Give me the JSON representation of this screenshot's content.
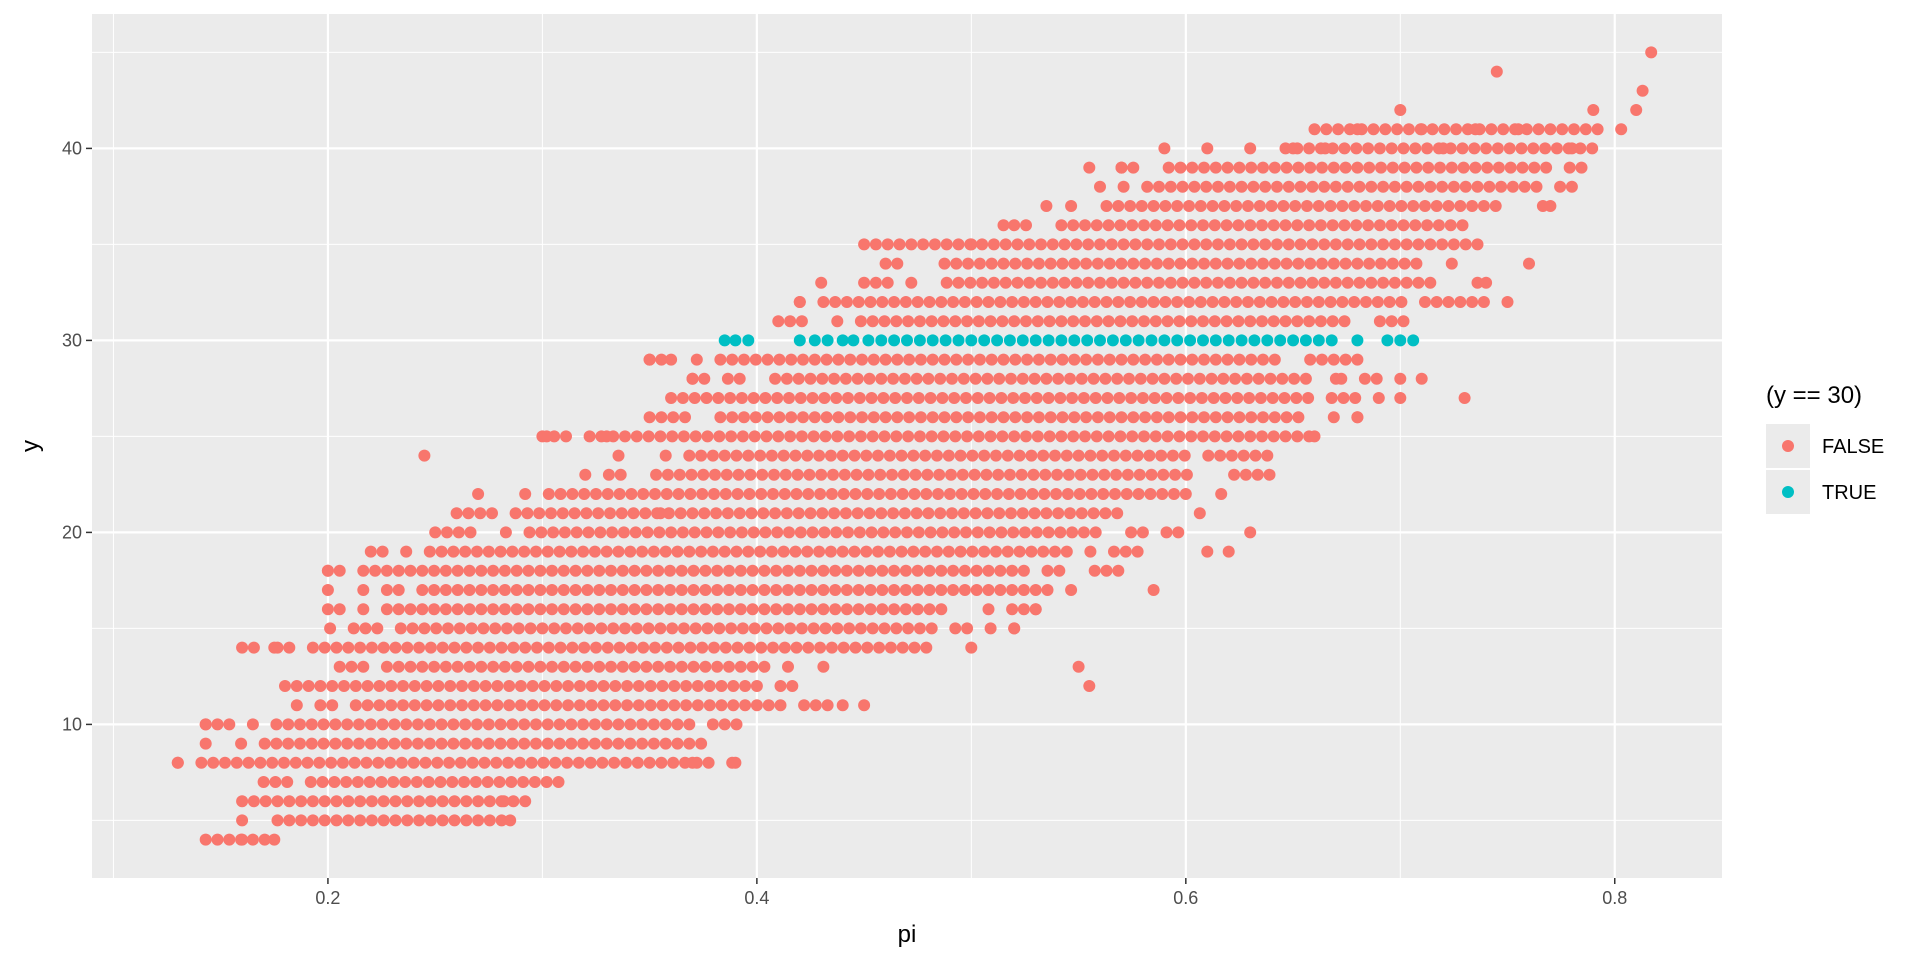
{
  "chart_data": {
    "type": "scatter",
    "xlabel": "pi",
    "ylabel": "y",
    "xlim": [
      0.09,
      0.85
    ],
    "ylim": [
      2,
      47
    ],
    "x_ticks": [
      0.2,
      0.4,
      0.6,
      0.8
    ],
    "x_tick_labels": [
      "0.2",
      "0.4",
      "0.6",
      "0.8"
    ],
    "y_ticks": [
      10,
      20,
      30,
      40
    ],
    "y_tick_labels": [
      "10",
      "20",
      "30",
      "40"
    ],
    "grid": true,
    "legend": {
      "title": "(y == 30)",
      "placement": "right",
      "entries": [
        {
          "label": "FALSE",
          "color": "#F8766D"
        },
        {
          "label": "TRUE",
          "color": "#00BFC4"
        }
      ]
    },
    "colors": {
      "panel": "#EBEBEB",
      "grid": "#FFFFFF",
      "false": "#F8766D",
      "true": "#00BFC4"
    },
    "integer_y_bands": [
      {
        "y": 4,
        "x": [
          0.143,
          0.175
        ]
      },
      {
        "y": 5,
        "x": [
          0.16,
          0.29
        ]
      },
      {
        "y": 6,
        "x": [
          0.16,
          0.3
        ]
      },
      {
        "y": 7,
        "x": [
          0.17,
          0.31
        ]
      },
      {
        "y": 8,
        "x": [
          0.13,
          0.39
        ]
      },
      {
        "y": 9,
        "x": [
          0.143,
          0.39
        ]
      },
      {
        "y": 10,
        "x": [
          0.143,
          0.395
        ]
      },
      {
        "y": 11,
        "x": [
          0.18,
          0.435
        ]
      },
      {
        "y": 12,
        "x": [
          0.18,
          0.42
        ]
      },
      {
        "y": 13,
        "x": [
          0.2,
          0.435
        ]
      },
      {
        "y": 14,
        "x": [
          0.16,
          0.5
        ]
      },
      {
        "y": 15,
        "x": [
          0.19,
          0.52
        ]
      },
      {
        "y": 16,
        "x": [
          0.2,
          0.53
        ]
      },
      {
        "y": 17,
        "x": [
          0.2,
          0.55
        ]
      },
      {
        "y": 18,
        "x": [
          0.2,
          0.57
        ]
      },
      {
        "y": 19,
        "x": [
          0.22,
          0.58
        ]
      },
      {
        "y": 20,
        "x": [
          0.25,
          0.6
        ]
      },
      {
        "y": 21,
        "x": [
          0.26,
          0.61
        ]
      },
      {
        "y": 22,
        "x": [
          0.27,
          0.62
        ]
      },
      {
        "y": 23,
        "x": [
          0.32,
          0.64
        ]
      },
      {
        "y": 24,
        "x": [
          0.33,
          0.64
        ]
      },
      {
        "y": 25,
        "x": [
          0.3,
          0.66
        ]
      },
      {
        "y": 26,
        "x": [
          0.35,
          0.68
        ]
      },
      {
        "y": 27,
        "x": [
          0.36,
          0.7
        ]
      },
      {
        "y": 28,
        "x": [
          0.37,
          0.7
        ]
      },
      {
        "y": 29,
        "x": [
          0.35,
          0.68
        ]
      },
      {
        "y": 31,
        "x": [
          0.41,
          0.71
        ]
      },
      {
        "y": 32,
        "x": [
          0.42,
          0.74
        ]
      },
      {
        "y": 33,
        "x": [
          0.45,
          0.74
        ]
      },
      {
        "y": 34,
        "x": [
          0.46,
          0.745
        ]
      },
      {
        "y": 35,
        "x": [
          0.45,
          0.74
        ]
      },
      {
        "y": 36,
        "x": [
          0.52,
          0.73
        ]
      },
      {
        "y": 37,
        "x": [
          0.53,
          0.77
        ]
      },
      {
        "y": 38,
        "x": [
          0.56,
          0.78
        ]
      },
      {
        "y": 39,
        "x": [
          0.57,
          0.79
        ]
      },
      {
        "y": 40,
        "x": [
          0.63,
          0.79
        ]
      },
      {
        "y": 41,
        "x": [
          0.66,
          0.81
        ]
      }
    ],
    "series": [
      {
        "name": "FALSE",
        "color": "#F8766D",
        "points": [
          [
            0.13,
            8
          ],
          [
            0.143,
            4
          ],
          [
            0.143,
            9
          ],
          [
            0.143,
            10
          ],
          [
            0.16,
            14
          ],
          [
            0.16,
            4
          ],
          [
            0.175,
            4
          ],
          [
            0.175,
            14
          ],
          [
            0.245,
            24
          ],
          [
            0.2,
            18
          ],
          [
            0.282,
            6
          ],
          [
            0.285,
            5
          ],
          [
            0.37,
            8
          ],
          [
            0.39,
            8
          ],
          [
            0.302,
            25
          ],
          [
            0.33,
            25
          ],
          [
            0.35,
            29
          ],
          [
            0.36,
            29
          ],
          [
            0.355,
            21
          ],
          [
            0.37,
            28
          ],
          [
            0.44,
            11
          ],
          [
            0.45,
            11
          ],
          [
            0.5,
            14
          ],
          [
            0.52,
            15
          ],
          [
            0.53,
            16
          ],
          [
            0.55,
            13
          ],
          [
            0.555,
            12
          ],
          [
            0.585,
            17
          ],
          [
            0.61,
            19
          ],
          [
            0.62,
            19
          ],
          [
            0.63,
            20
          ],
          [
            0.42,
            32
          ],
          [
            0.43,
            33
          ],
          [
            0.45,
            35
          ],
          [
            0.5,
            35
          ],
          [
            0.515,
            36
          ],
          [
            0.535,
            37
          ],
          [
            0.555,
            39
          ],
          [
            0.57,
            39
          ],
          [
            0.59,
            40
          ],
          [
            0.61,
            40
          ],
          [
            0.65,
            40
          ],
          [
            0.665,
            40
          ],
          [
            0.68,
            41
          ],
          [
            0.7,
            42
          ],
          [
            0.71,
            41
          ],
          [
            0.72,
            40
          ],
          [
            0.735,
            41
          ],
          [
            0.745,
            44
          ],
          [
            0.755,
            41
          ],
          [
            0.78,
            40
          ],
          [
            0.79,
            42
          ],
          [
            0.81,
            42
          ],
          [
            0.813,
            43
          ],
          [
            0.817,
            45
          ],
          [
            0.7,
            27
          ],
          [
            0.73,
            27
          ],
          [
            0.68,
            26
          ],
          [
            0.66,
            25
          ],
          [
            0.67,
            28
          ],
          [
            0.7,
            28
          ],
          [
            0.71,
            28
          ],
          [
            0.74,
            33
          ],
          [
            0.75,
            32
          ],
          [
            0.76,
            34
          ],
          [
            0.77,
            37
          ],
          [
            0.78,
            38
          ]
        ]
      },
      {
        "name": "TRUE",
        "color": "#00BFC4",
        "points": [
          [
            0.385,
            30
          ],
          [
            0.39,
            30
          ],
          [
            0.396,
            30
          ],
          [
            0.42,
            30
          ],
          [
            0.427,
            30
          ],
          [
            0.433,
            30
          ],
          [
            0.44,
            30
          ],
          [
            0.445,
            30
          ],
          [
            0.452,
            30
          ],
          [
            0.458,
            30
          ],
          [
            0.464,
            30
          ],
          [
            0.47,
            30
          ],
          [
            0.476,
            30
          ],
          [
            0.482,
            30
          ],
          [
            0.488,
            30
          ],
          [
            0.494,
            30
          ],
          [
            0.5,
            30
          ],
          [
            0.506,
            30
          ],
          [
            0.512,
            30
          ],
          [
            0.518,
            30
          ],
          [
            0.524,
            30
          ],
          [
            0.53,
            30
          ],
          [
            0.536,
            30
          ],
          [
            0.542,
            30
          ],
          [
            0.548,
            30
          ],
          [
            0.554,
            30
          ],
          [
            0.56,
            30
          ],
          [
            0.566,
            30
          ],
          [
            0.572,
            30
          ],
          [
            0.578,
            30
          ],
          [
            0.584,
            30
          ],
          [
            0.59,
            30
          ],
          [
            0.596,
            30
          ],
          [
            0.602,
            30
          ],
          [
            0.608,
            30
          ],
          [
            0.614,
            30
          ],
          [
            0.62,
            30
          ],
          [
            0.626,
            30
          ],
          [
            0.632,
            30
          ],
          [
            0.638,
            30
          ],
          [
            0.644,
            30
          ],
          [
            0.65,
            30
          ],
          [
            0.656,
            30
          ],
          [
            0.662,
            30
          ],
          [
            0.668,
            30
          ],
          [
            0.68,
            30
          ],
          [
            0.694,
            30
          ],
          [
            0.7,
            30
          ],
          [
            0.706,
            30
          ]
        ]
      }
    ]
  }
}
